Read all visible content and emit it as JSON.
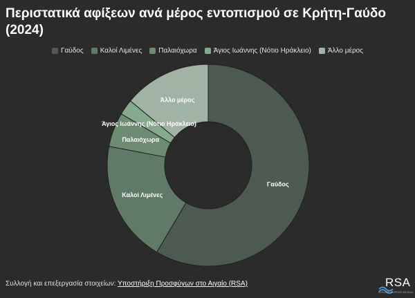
{
  "title": "Περιστατικά αφίξεων ανά μέρος εντοπισμού σε Κρήτη-Γαύδο (2024)",
  "chart_data": {
    "type": "pie",
    "title": "Περιστατικά αφίξεων ανά μέρος εντοπισμού σε Κρήτη-Γαύδο (2024)",
    "donut": true,
    "legend_position": "top",
    "categories": [
      "Γαύδος",
      "Καλοί Λιμένες",
      "Παλαιόχωρα",
      "Άγιος Ιωάννης (Νότιο Ηράκλειο)",
      "Άλλο μέρος"
    ],
    "values": [
      58.5,
      19.5,
      5.5,
      2.5,
      14.0
    ],
    "unit": "%",
    "colors": [
      "#4d5a4f",
      "#5f7a66",
      "#6d8c72",
      "#85a98b",
      "#a1b3a4"
    ]
  },
  "footer": {
    "prefix": "Συλλογή και επεξεργασία στοιχείων: ",
    "link": "Υποστήριξη Προσφύγων στο Αιγαίο (RSA)"
  },
  "logo": {
    "text": "RSA",
    "subtitle": "REFUGEE SUPPORT AEGEAN"
  }
}
